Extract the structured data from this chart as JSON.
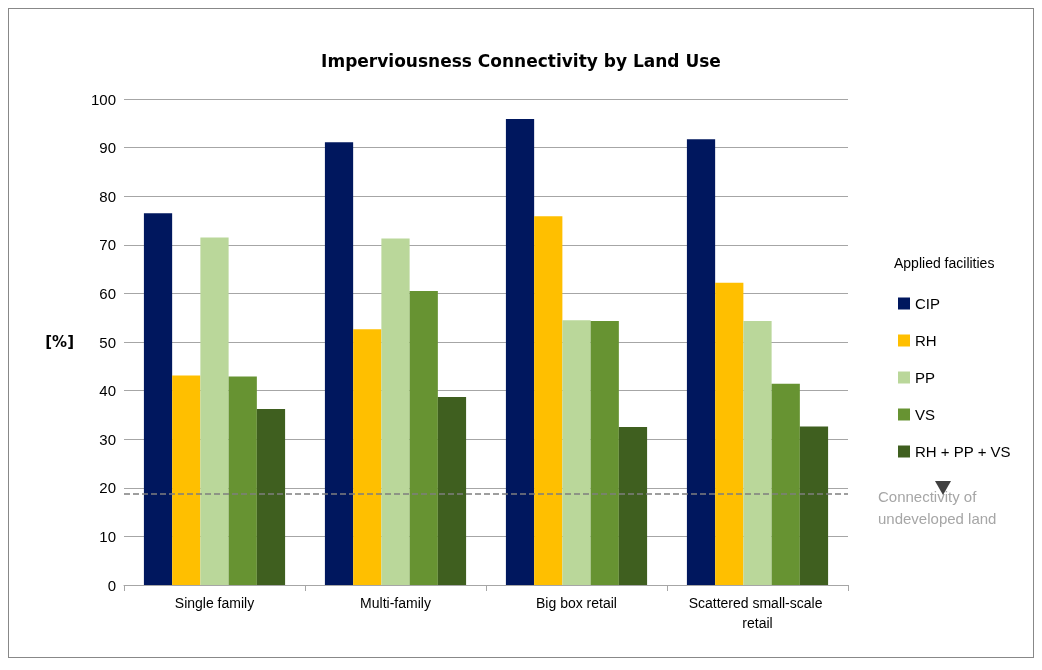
{
  "chart_data": {
    "type": "bar",
    "title": "Imperviousness Connectivity by Land Use",
    "ylabel": "[%]",
    "legend_title": "Applied facilities",
    "categories": [
      "Single family",
      "Multi-family",
      "Big box retail",
      "Scattered small-scale retail"
    ],
    "series": [
      {
        "name": "CIP",
        "color": "#00175e",
        "values": [
          76.5,
          91.1,
          95.9,
          91.7
        ]
      },
      {
        "name": "RH",
        "color": "#ffbf00",
        "values": [
          43.1,
          52.6,
          75.9,
          62.2
        ]
      },
      {
        "name": "PP",
        "color": "#bad79a",
        "values": [
          71.5,
          71.3,
          54.5,
          54.3
        ]
      },
      {
        "name": "VS",
        "color": "#679332",
        "values": [
          42.9,
          60.5,
          54.3,
          41.4
        ]
      },
      {
        "name": "RH + PP + VS",
        "color": "#3f5f1f",
        "values": [
          36.2,
          38.7,
          32.5,
          32.6
        ]
      }
    ],
    "ylim": [
      0,
      100
    ],
    "yticks": [
      0,
      10,
      20,
      30,
      40,
      50,
      60,
      70,
      80,
      90,
      100
    ],
    "grid": "y",
    "legend": "right",
    "ref_lines": [
      {
        "axis": "y",
        "value": 18.8,
        "label": "Connectivity of undeveloped land",
        "color": "#7f7f7f",
        "line_style": "dashed"
      }
    ]
  }
}
